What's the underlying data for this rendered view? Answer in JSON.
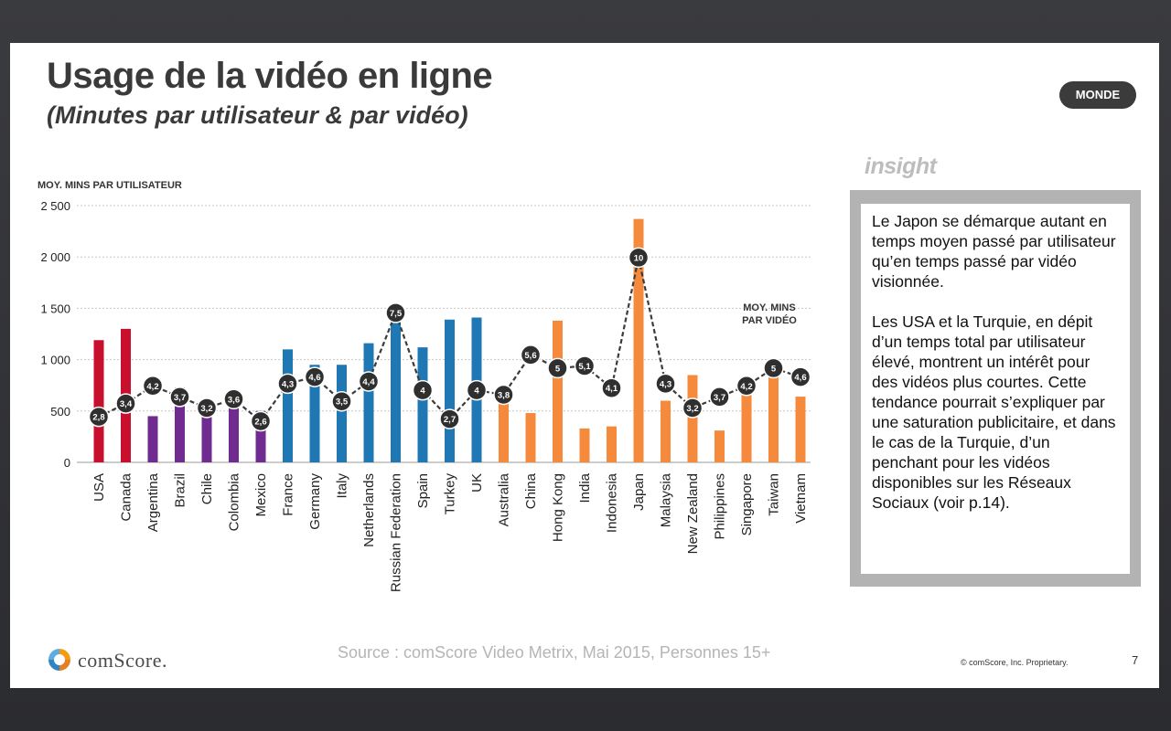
{
  "header": {
    "title": "Usage de la vidéo en ligne",
    "subtitle": "(Minutes par utilisateur & par vidéo)",
    "badge": "MONDE"
  },
  "insight": {
    "label": "insight",
    "paragraph1": "Le Japon se démarque autant en temps moyen passé par utilisateur qu’en temps passé par vidéo visionnée.",
    "paragraph2": "Les USA et la Turquie, en dépit d’un temps total par utilisateur élevé, montrent un intérêt pour des vidéos plus courtes. Cette tendance pourrait s’expliquer par une saturation publicitaire, et dans le cas de la Turquie, d’un penchant pour les vidéos disponibles sur les Réseaux Sociaux (voir p.14)."
  },
  "footer": {
    "source": "Source : comScore Video Metrix, Mai 2015, Personnes 15+",
    "logo_text": "comScore.",
    "copyright": "© comScore, Inc. Proprietary.",
    "page_number": "7"
  },
  "colors": {
    "north_america": "#c8102e",
    "latin_america": "#6f2b8f",
    "europe": "#1f78b4",
    "asia_pacific": "#f58a3c",
    "line": "#3b3b3b",
    "marker": "#2f2f2f"
  },
  "chart_data": {
    "type": "bar",
    "ylabel": "MOY. MINS PAR UTILISATEUR",
    "line_label": "MOY. MINS PAR VIDÉO",
    "ylim": [
      0,
      2500
    ],
    "yticks": [
      "0",
      "500",
      "1 000",
      "1 500",
      "2 000",
      "2 500"
    ],
    "grid": true,
    "categories": [
      "USA",
      "Canada",
      "Argentina",
      "Brazil",
      "Chile",
      "Colombia",
      "Mexico",
      "France",
      "Germany",
      "Italy",
      "Netherlands",
      "Russian Federation",
      "Spain",
      "Turkey",
      "UK",
      "Australia",
      "China",
      "Hong Kong",
      "India",
      "Indonesia",
      "Japan",
      "Malaysia",
      "New Zealand",
      "Philippines",
      "Singapore",
      "Taiwan",
      "Vietnam"
    ],
    "series": [
      {
        "type": "bar",
        "values": [
          1190,
          1300,
          450,
          730,
          470,
          590,
          500,
          1100,
          950,
          950,
          1160,
          1460,
          1120,
          1390,
          1410,
          700,
          480,
          1380,
          330,
          350,
          2370,
          600,
          850,
          310,
          780,
          990,
          640
        ],
        "groups": [
          "north_america",
          "north_america",
          "latin_america",
          "latin_america",
          "latin_america",
          "latin_america",
          "latin_america",
          "europe",
          "europe",
          "europe",
          "europe",
          "europe",
          "europe",
          "europe",
          "europe",
          "asia_pacific",
          "asia_pacific",
          "asia_pacific",
          "asia_pacific",
          "asia_pacific",
          "asia_pacific",
          "asia_pacific",
          "asia_pacific",
          "asia_pacific",
          "asia_pacific",
          "asia_pacific",
          "asia_pacific"
        ]
      },
      {
        "type": "line",
        "values": [
          2.8,
          3.4,
          4.2,
          3.7,
          3.2,
          3.6,
          2.6,
          4.3,
          4.6,
          3.5,
          4.4,
          7.5,
          4,
          2.7,
          4,
          3.8,
          5.6,
          5,
          5.1,
          4.1,
          10,
          4.3,
          3.2,
          3.7,
          4.2,
          5,
          4.6
        ],
        "labels": [
          "2,8",
          "3,4",
          "4,2",
          "3,7",
          "3,2",
          "3,6",
          "2,6",
          "4,3",
          "4,6",
          "3,5",
          "4,4",
          "7,5",
          "4",
          "2,7",
          "4",
          "3,8",
          "5,6",
          "5",
          "5,1",
          "4,1",
          "10",
          "4,3",
          "3,2",
          "3,7",
          "4,2",
          "5",
          "4,6"
        ]
      }
    ]
  }
}
